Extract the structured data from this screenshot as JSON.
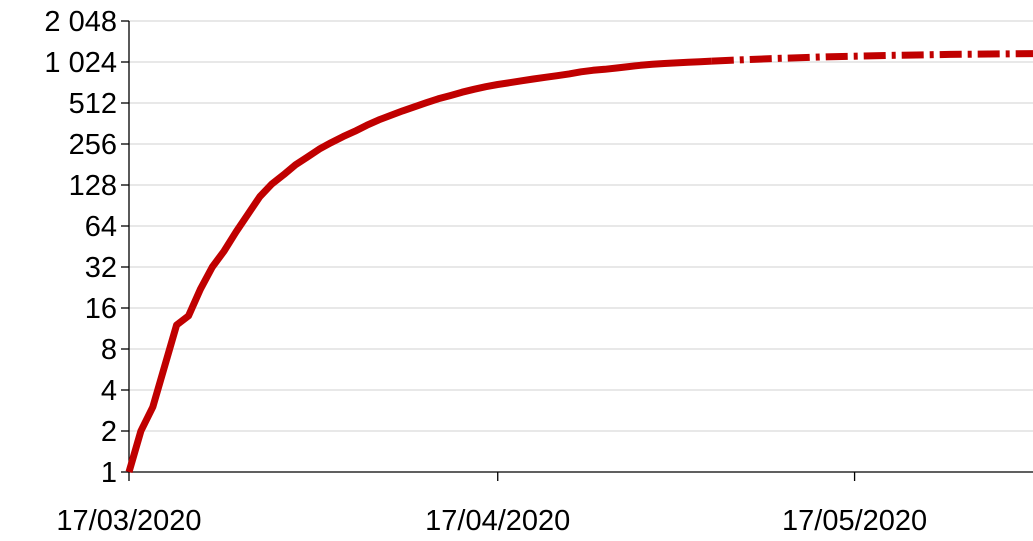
{
  "chart_data": {
    "type": "line",
    "title": "",
    "xlabel": "",
    "ylabel": "",
    "y_scale": "log2",
    "ylim": [
      1,
      2048
    ],
    "xlim": [
      "2020-03-17",
      "2020-06-01"
    ],
    "y_ticks": [
      {
        "value": 1,
        "label": "1"
      },
      {
        "value": 2,
        "label": "2"
      },
      {
        "value": 4,
        "label": "4"
      },
      {
        "value": 8,
        "label": "8"
      },
      {
        "value": 16,
        "label": "16"
      },
      {
        "value": 32,
        "label": "32"
      },
      {
        "value": 64,
        "label": "64"
      },
      {
        "value": 128,
        "label": "128"
      },
      {
        "value": 256,
        "label": "256"
      },
      {
        "value": 512,
        "label": "512"
      },
      {
        "value": 1024,
        "label": "1 024"
      },
      {
        "value": 2048,
        "label": "2 048"
      }
    ],
    "x_ticks": [
      {
        "value": "2020-03-17",
        "label": "17/03/2020"
      },
      {
        "value": "2020-04-17",
        "label": "17/04/2020"
      },
      {
        "value": "2020-05-17",
        "label": "17/05/2020"
      }
    ],
    "grid": true,
    "legend": "none",
    "series": [
      {
        "style": "solid",
        "color": "#c00000",
        "points": [
          [
            "2020-03-17",
            1
          ],
          [
            "2020-03-18",
            2
          ],
          [
            "2020-03-19",
            3
          ],
          [
            "2020-03-20",
            6
          ],
          [
            "2020-03-21",
            12
          ],
          [
            "2020-03-22",
            14
          ],
          [
            "2020-03-23",
            22
          ],
          [
            "2020-03-24",
            32
          ],
          [
            "2020-03-25",
            42
          ],
          [
            "2020-03-26",
            58
          ],
          [
            "2020-03-27",
            78
          ],
          [
            "2020-03-28",
            105
          ],
          [
            "2020-03-29",
            130
          ],
          [
            "2020-03-30",
            152
          ],
          [
            "2020-03-31",
            180
          ],
          [
            "2020-04-01",
            205
          ],
          [
            "2020-04-02",
            235
          ],
          [
            "2020-04-03",
            262
          ],
          [
            "2020-04-04",
            290
          ],
          [
            "2020-04-05",
            318
          ],
          [
            "2020-04-06",
            352
          ],
          [
            "2020-04-07",
            385
          ],
          [
            "2020-04-08",
            415
          ],
          [
            "2020-04-09",
            448
          ],
          [
            "2020-04-10",
            480
          ],
          [
            "2020-04-11",
            515
          ],
          [
            "2020-04-12",
            550
          ],
          [
            "2020-04-13",
            580
          ],
          [
            "2020-04-14",
            615
          ],
          [
            "2020-04-15",
            645
          ],
          [
            "2020-04-16",
            675
          ],
          [
            "2020-04-17",
            700
          ],
          [
            "2020-04-18",
            722
          ],
          [
            "2020-04-19",
            745
          ],
          [
            "2020-04-20",
            768
          ],
          [
            "2020-04-21",
            790
          ],
          [
            "2020-04-22",
            812
          ],
          [
            "2020-04-23",
            838
          ],
          [
            "2020-04-24",
            868
          ],
          [
            "2020-04-25",
            890
          ],
          [
            "2020-04-26",
            905
          ],
          [
            "2020-04-27",
            925
          ],
          [
            "2020-04-28",
            948
          ],
          [
            "2020-04-29",
            968
          ],
          [
            "2020-04-30",
            985
          ],
          [
            "2020-05-01",
            998
          ],
          [
            "2020-05-02",
            1008
          ],
          [
            "2020-05-03",
            1018
          ],
          [
            "2020-05-04",
            1028
          ],
          [
            "2020-05-05",
            1040
          ]
        ]
      },
      {
        "style": "dashed",
        "color": "#c00000",
        "points": [
          [
            "2020-05-05",
            1040
          ],
          [
            "2020-05-10",
            1085
          ],
          [
            "2020-05-15",
            1120
          ],
          [
            "2020-05-20",
            1145
          ],
          [
            "2020-05-25",
            1165
          ],
          [
            "2020-06-01",
            1180
          ]
        ]
      }
    ]
  }
}
